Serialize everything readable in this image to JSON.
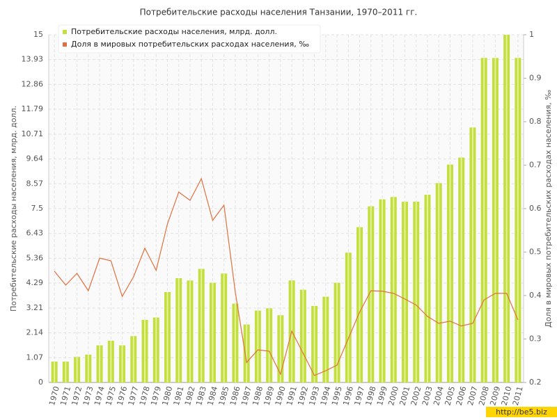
{
  "chart_data": {
    "type": "bar_line",
    "title": "Потребительские расходы населения Танзании, 1970–2011 гг.",
    "y_label": "Потребительские расходы населения, млрд. долл.",
    "y2_label": "Доля в мировых потребительских расходах населения, ‰",
    "watermark": "http://be5.biz",
    "categories": [
      "1970",
      "1971",
      "1972",
      "1973",
      "1974",
      "1975",
      "1976",
      "1977",
      "1978",
      "1979",
      "1980",
      "1981",
      "1982",
      "1983",
      "1984",
      "1985",
      "1986",
      "1987",
      "1988",
      "1989",
      "1990",
      "1991",
      "1992",
      "1993",
      "1994",
      "1995",
      "1996",
      "1997",
      "1998",
      "1999",
      "2000",
      "2001",
      "2002",
      "2003",
      "2004",
      "2005",
      "2006",
      "2007",
      "2008",
      "2009",
      "2010",
      "2011"
    ],
    "series": [
      {
        "name": "Потребительские расходы населения, млрд. долл.",
        "type": "bar",
        "color": "#c3df3f",
        "values": [
          0.9,
          0.9,
          1.1,
          1.2,
          1.6,
          1.8,
          1.6,
          2.0,
          2.7,
          2.8,
          3.9,
          4.5,
          4.4,
          4.9,
          4.3,
          4.7,
          3.4,
          2.5,
          3.1,
          3.2,
          2.9,
          4.4,
          4.0,
          3.3,
          3.7,
          4.3,
          5.6,
          6.7,
          7.6,
          7.9,
          8.0,
          7.8,
          7.8,
          8.1,
          8.6,
          9.4,
          9.7,
          11.0,
          14.0,
          14.0,
          15.0,
          14.0
        ]
      },
      {
        "name": "Доля в мировых потребительских расходах населения, ‰",
        "type": "line",
        "axis": "y2",
        "color": "#e0703f",
        "values": [
          0.456,
          0.424,
          0.451,
          0.411,
          0.486,
          0.48,
          0.398,
          0.443,
          0.509,
          0.458,
          0.565,
          0.638,
          0.619,
          0.669,
          0.573,
          0.608,
          0.408,
          0.246,
          0.275,
          0.272,
          0.219,
          0.318,
          0.267,
          0.216,
          0.227,
          0.24,
          0.301,
          0.362,
          0.411,
          0.41,
          0.405,
          0.392,
          0.378,
          0.352,
          0.336,
          0.341,
          0.33,
          0.336,
          0.39,
          0.405,
          0.405,
          0.344
        ]
      }
    ],
    "ylim": [
      0,
      15
    ],
    "yticks": [
      0,
      1.07,
      2.14,
      3.21,
      4.29,
      5.36,
      6.43,
      7.5,
      8.57,
      9.64,
      10.71,
      11.79,
      12.86,
      13.93,
      15
    ],
    "y2lim": [
      0.2,
      1
    ],
    "y2ticks": [
      0.2,
      0.3,
      0.4,
      0.5,
      0.6,
      0.7,
      0.8,
      0.9,
      1
    ],
    "grid": true,
    "legend": "top-left"
  }
}
